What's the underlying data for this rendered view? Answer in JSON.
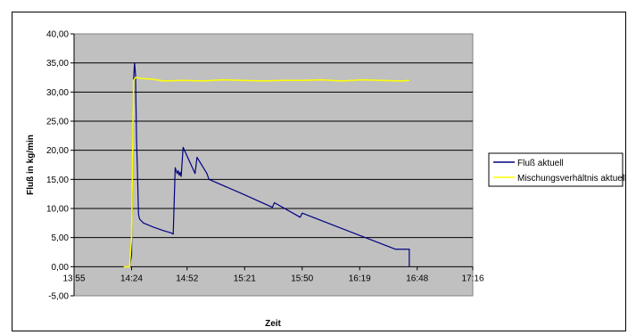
{
  "chart_data": {
    "type": "line",
    "title": "",
    "xlabel": "Zeit",
    "ylabel": "Fluß in kg/min",
    "xlim": [
      "13:55",
      "17:16"
    ],
    "ylim": [
      -5,
      40
    ],
    "y_ticks": [
      -5,
      0,
      5,
      10,
      15,
      20,
      25,
      30,
      35,
      40
    ],
    "y_tick_labels": [
      "-5,00",
      "0,00",
      "5,00",
      "10,00",
      "15,00",
      "20,00",
      "25,00",
      "30,00",
      "35,00",
      "40,00"
    ],
    "x_ticks": [
      "13:55",
      "14:24",
      "14:52",
      "15:21",
      "15:50",
      "16:19",
      "16:48",
      "17:16"
    ],
    "grid": true,
    "plot_background": "#c0c0c0",
    "legend_placement": "right",
    "series": [
      {
        "name": "Fluß aktuell",
        "color": "#000080",
        "points": [
          [
            "14:20",
            0.0
          ],
          [
            "14:23",
            0.0
          ],
          [
            "14:24",
            2.0
          ],
          [
            "14:25",
            32.0
          ],
          [
            "14:25.5",
            35.0
          ],
          [
            "14:26",
            33.0
          ],
          [
            "14:26.5",
            22.0
          ],
          [
            "14:27",
            16.0
          ],
          [
            "14:27.5",
            9.0
          ],
          [
            "14:28",
            8.2
          ],
          [
            "14:30",
            7.5
          ],
          [
            "14:35",
            6.8
          ],
          [
            "14:40",
            6.2
          ],
          [
            "14:44",
            5.8
          ],
          [
            "14:45",
            5.6
          ],
          [
            "14:46",
            17.0
          ],
          [
            "14:47",
            16.0
          ],
          [
            "14:47.5",
            16.5
          ],
          [
            "14:48",
            15.7
          ],
          [
            "14:48.5",
            16.2
          ],
          [
            "14:49",
            15.5
          ],
          [
            "14:50",
            20.5
          ],
          [
            "14:56",
            16.0
          ],
          [
            "14:57",
            18.8
          ],
          [
            "15:02",
            16.0
          ],
          [
            "15:03",
            15.0
          ],
          [
            "15:20",
            12.5
          ],
          [
            "15:35",
            10.2
          ],
          [
            "15:36",
            11.0
          ],
          [
            "15:49",
            8.5
          ],
          [
            "15:50",
            9.2
          ],
          [
            "16:37",
            3.0
          ],
          [
            "16:44",
            3.0
          ],
          [
            "16:44",
            0.0
          ]
        ]
      },
      {
        "name": "Mischungsverhältnis aktuell",
        "color": "#ffff00",
        "points": [
          [
            "14:20",
            0.0
          ],
          [
            "14:23",
            0.0
          ],
          [
            "14:24",
            5.0
          ],
          [
            "14:25",
            32.0
          ],
          [
            "14:26",
            32.5
          ],
          [
            "14:30",
            32.3
          ],
          [
            "14:35",
            32.2
          ],
          [
            "14:40",
            31.9
          ],
          [
            "14:50",
            32.0
          ],
          [
            "15:00",
            31.9
          ],
          [
            "15:10",
            32.1
          ],
          [
            "15:20",
            32.0
          ],
          [
            "15:30",
            31.9
          ],
          [
            "15:40",
            32.0
          ],
          [
            "15:50",
            32.0
          ],
          [
            "16:00",
            32.1
          ],
          [
            "16:10",
            31.9
          ],
          [
            "16:20",
            32.1
          ],
          [
            "16:30",
            32.0
          ],
          [
            "16:40",
            31.9
          ],
          [
            "16:44",
            32.0
          ]
        ]
      }
    ]
  }
}
